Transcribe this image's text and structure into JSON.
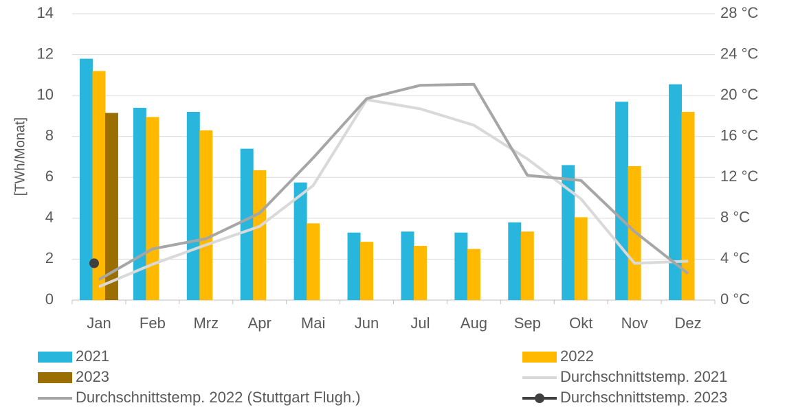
{
  "chart_data": {
    "type": "bar",
    "ylabel": "[TWh/Monat]",
    "categories": [
      "Jan",
      "Feb",
      "Mrz",
      "Apr",
      "Mai",
      "Jun",
      "Jul",
      "Aug",
      "Sep",
      "Okt",
      "Nov",
      "Dez"
    ],
    "series": [
      {
        "name": "2021",
        "type": "bar",
        "color": "#29b6dd",
        "values": [
          11.8,
          9.4,
          9.2,
          7.4,
          5.75,
          3.3,
          3.35,
          3.3,
          3.8,
          6.6,
          9.7,
          10.55
        ]
      },
      {
        "name": "2022",
        "type": "bar",
        "color": "#ffb900",
        "values": [
          11.2,
          8.95,
          8.3,
          6.35,
          3.75,
          2.85,
          2.65,
          2.5,
          3.35,
          4.05,
          6.55,
          9.2
        ]
      },
      {
        "name": "2023",
        "type": "bar",
        "color": "#9a6e00",
        "values": [
          9.15,
          null,
          null,
          null,
          null,
          null,
          null,
          null,
          null,
          null,
          null,
          null
        ]
      },
      {
        "name": "Durchschnittstemp. 2021",
        "type": "line",
        "axis": "y2",
        "color": "#d9d9d9",
        "values": [
          1.3,
          3.5,
          5.4,
          7.2,
          11.2,
          19.6,
          18.7,
          17.1,
          13.8,
          9.9,
          3.6,
          3.8
        ]
      },
      {
        "name": "Durchschnittstemp. 2022 (Stuttgart Flugh.)",
        "type": "line",
        "axis": "y2",
        "color": "#a6a6a6",
        "values": [
          2.0,
          5.0,
          6.0,
          8.5,
          13.9,
          19.7,
          21.0,
          21.1,
          12.2,
          11.7,
          6.7,
          2.6
        ]
      },
      {
        "name": "Durchschnittstemp. 2023",
        "type": "line",
        "axis": "y2",
        "marker": true,
        "color": "#404040",
        "values": [
          3.6,
          null,
          null,
          null,
          null,
          null,
          null,
          null,
          null,
          null,
          null,
          null
        ]
      }
    ],
    "ylim": [
      0,
      14
    ],
    "yticks": [
      0,
      2,
      4,
      6,
      8,
      10,
      12,
      14
    ],
    "y2lim": [
      0,
      28
    ],
    "y2ticks": [
      {
        "value": 0,
        "label": "0 °C"
      },
      {
        "value": 4,
        "label": "4 °C"
      },
      {
        "value": 8,
        "label": "8 °C"
      },
      {
        "value": 12,
        "label": "12 °C"
      },
      {
        "value": 16,
        "label": "16 °C"
      },
      {
        "value": 20,
        "label": "20 °C"
      },
      {
        "value": 24,
        "label": "24 °C"
      },
      {
        "value": 28,
        "label": "28 °C"
      }
    ],
    "grid": true,
    "legend": "bottom"
  }
}
